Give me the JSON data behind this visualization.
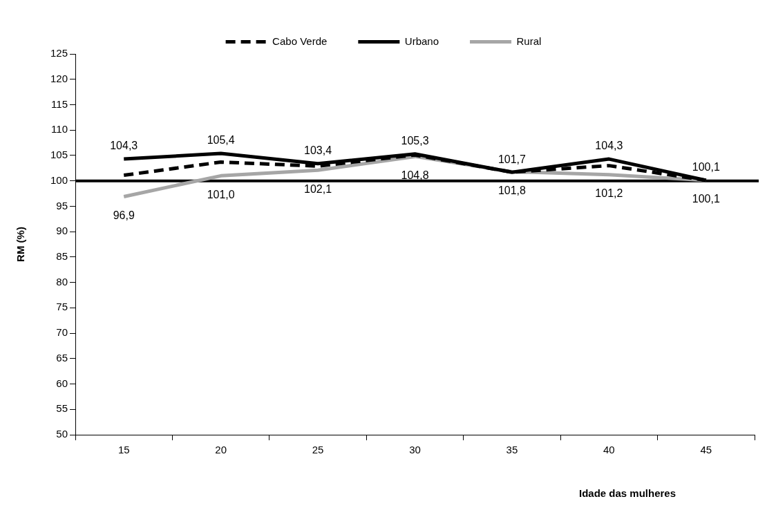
{
  "chart_data": {
    "type": "line",
    "xlabel": "Idade das mulheres",
    "ylabel": "RM (%)",
    "categories": [
      "15",
      "20",
      "25",
      "30",
      "35",
      "40",
      "45"
    ],
    "series": [
      {
        "name": "Cabo Verde",
        "color": "#000000",
        "line_style": "dashed",
        "values": [
          101.1,
          103.7,
          102.9,
          105.1,
          101.7,
          103.0,
          100.1
        ]
      },
      {
        "name": "Urbano",
        "color": "#000000",
        "line_style": "solid",
        "values": [
          104.3,
          105.4,
          103.4,
          105.3,
          101.7,
          104.3,
          100.1
        ],
        "value_labels": [
          "104,3",
          "105,4",
          "103,4",
          "105,3",
          "101,7",
          "104,3",
          "100,1"
        ]
      },
      {
        "name": "Rural",
        "color": "#a6a6a6",
        "line_style": "solid",
        "values": [
          96.9,
          101.0,
          102.1,
          104.8,
          101.8,
          101.2,
          100.1
        ],
        "value_labels": [
          "96,9",
          "101,0",
          "102,1",
          "104,8",
          "101,8",
          "101,2",
          "100,1"
        ]
      }
    ],
    "ylim": [
      50,
      125
    ],
    "yticks": [
      50,
      55,
      60,
      65,
      70,
      75,
      80,
      85,
      90,
      95,
      100,
      105,
      110,
      115,
      120,
      125
    ],
    "ref_lines": [
      {
        "axis": "y",
        "value": 100,
        "color": "#000000"
      }
    ],
    "grid": false,
    "legend": "top",
    "marker": "none"
  }
}
